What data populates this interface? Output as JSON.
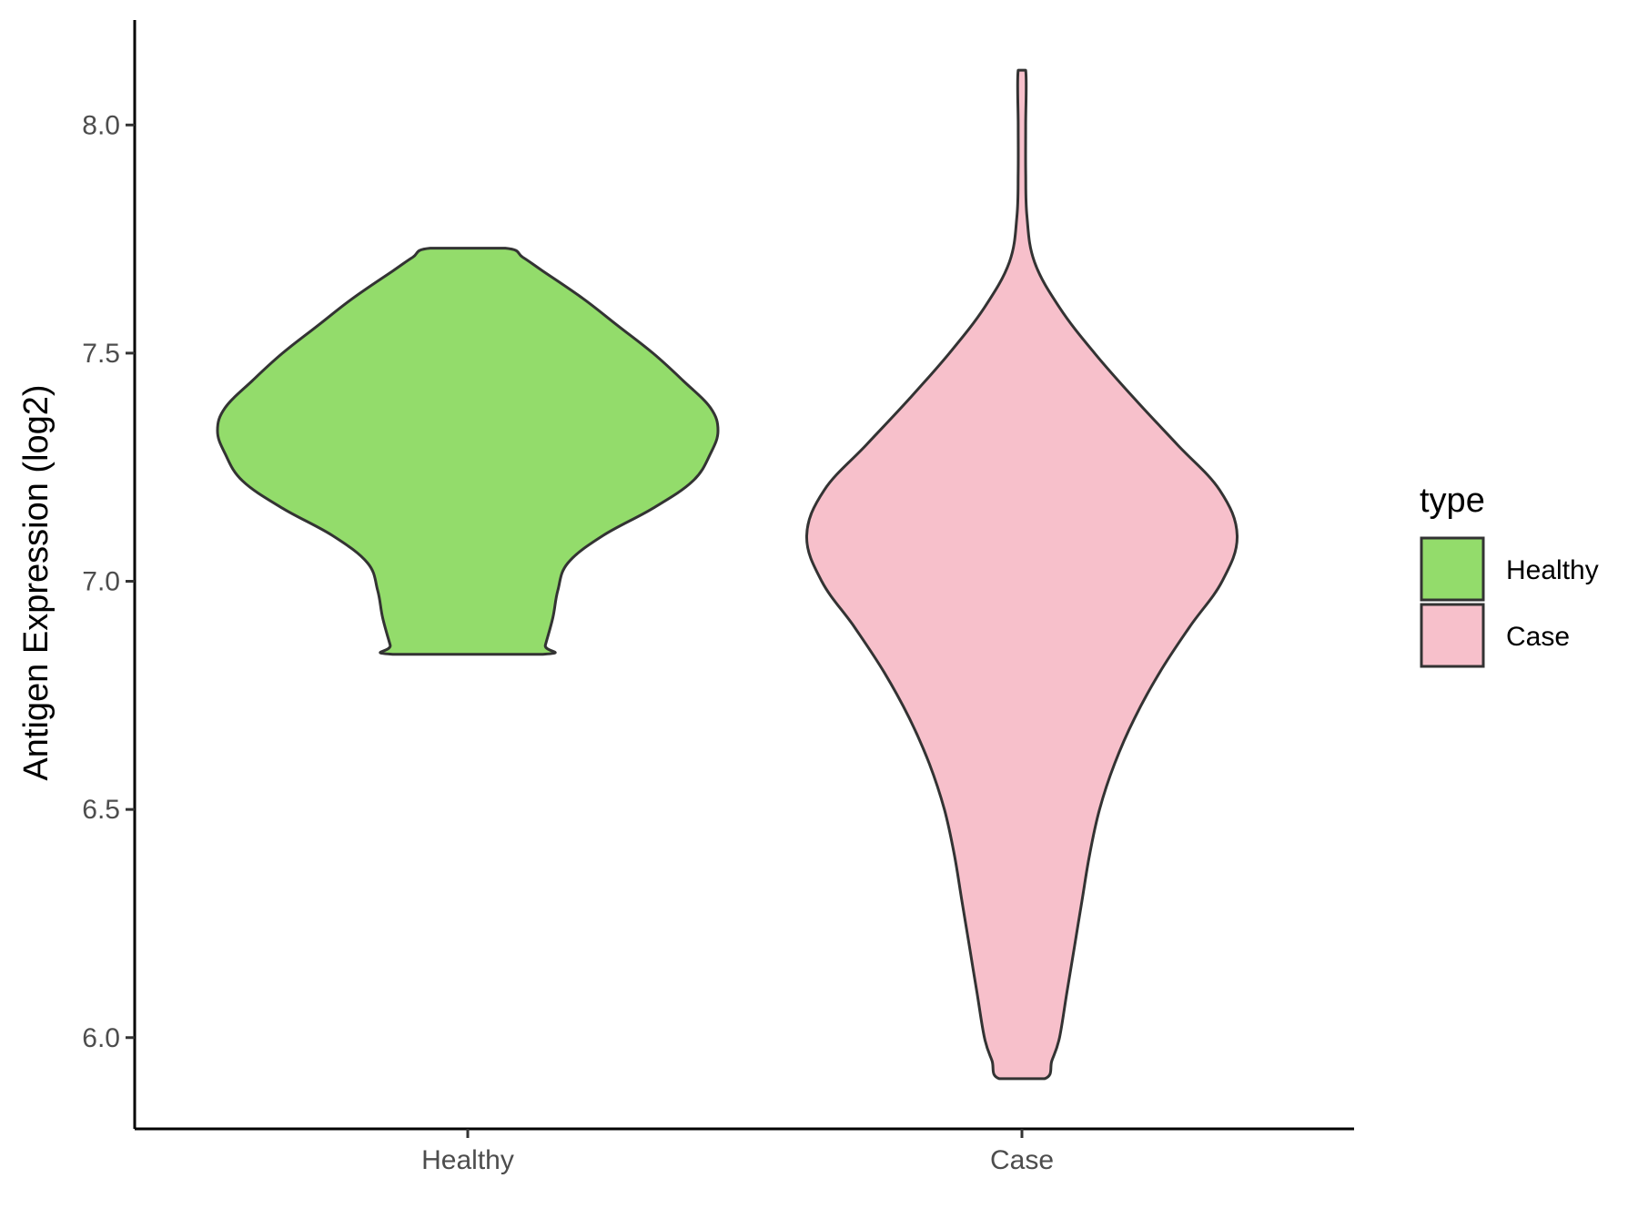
{
  "chart_data": {
    "type": "violin",
    "xlabel": "",
    "ylabel": "Antigen Expression (log2)",
    "ylim": [
      5.8,
      8.23
    ],
    "yticks": [
      6.0,
      6.5,
      7.0,
      7.5,
      8.0
    ],
    "ytick_labels": [
      "6.0",
      "6.5",
      "7.0",
      "7.5",
      "8.0"
    ],
    "categories": [
      "Healthy",
      "Case"
    ],
    "grid": false,
    "legend": {
      "title": "type",
      "position": "right",
      "entries": [
        {
          "label": "Healthy",
          "color": "#93dc6b"
        },
        {
          "label": "Case",
          "color": "#f7c0cb"
        }
      ]
    },
    "series": [
      {
        "category": "Healthy",
        "color": "#93dc6b",
        "min": 6.84,
        "max": 7.73,
        "density_profile": [
          [
            6.84,
            0.3
          ],
          [
            6.86,
            0.31
          ],
          [
            6.92,
            0.34
          ],
          [
            6.98,
            0.36
          ],
          [
            7.04,
            0.4
          ],
          [
            7.1,
            0.54
          ],
          [
            7.16,
            0.74
          ],
          [
            7.22,
            0.9
          ],
          [
            7.28,
            0.97
          ],
          [
            7.33,
            1.0
          ],
          [
            7.38,
            0.97
          ],
          [
            7.44,
            0.86
          ],
          [
            7.5,
            0.74
          ],
          [
            7.56,
            0.6
          ],
          [
            7.62,
            0.46
          ],
          [
            7.68,
            0.3
          ],
          [
            7.71,
            0.22
          ],
          [
            7.73,
            0.15
          ]
        ]
      },
      {
        "category": "Case",
        "color": "#f7c0cb",
        "min": 5.91,
        "max": 8.12,
        "density_profile": [
          [
            5.91,
            0.09
          ],
          [
            5.95,
            0.12
          ],
          [
            6.0,
            0.15
          ],
          [
            6.1,
            0.18
          ],
          [
            6.2,
            0.21
          ],
          [
            6.3,
            0.24
          ],
          [
            6.4,
            0.27
          ],
          [
            6.5,
            0.31
          ],
          [
            6.6,
            0.37
          ],
          [
            6.7,
            0.45
          ],
          [
            6.8,
            0.55
          ],
          [
            6.9,
            0.67
          ],
          [
            7.0,
            0.8
          ],
          [
            7.1,
            0.86
          ],
          [
            7.2,
            0.79
          ],
          [
            7.3,
            0.62
          ],
          [
            7.4,
            0.45
          ],
          [
            7.5,
            0.29
          ],
          [
            7.6,
            0.15
          ],
          [
            7.7,
            0.05
          ],
          [
            7.8,
            0.02
          ],
          [
            7.9,
            0.015
          ],
          [
            8.0,
            0.015
          ],
          [
            8.12,
            0.015
          ]
        ]
      }
    ]
  }
}
